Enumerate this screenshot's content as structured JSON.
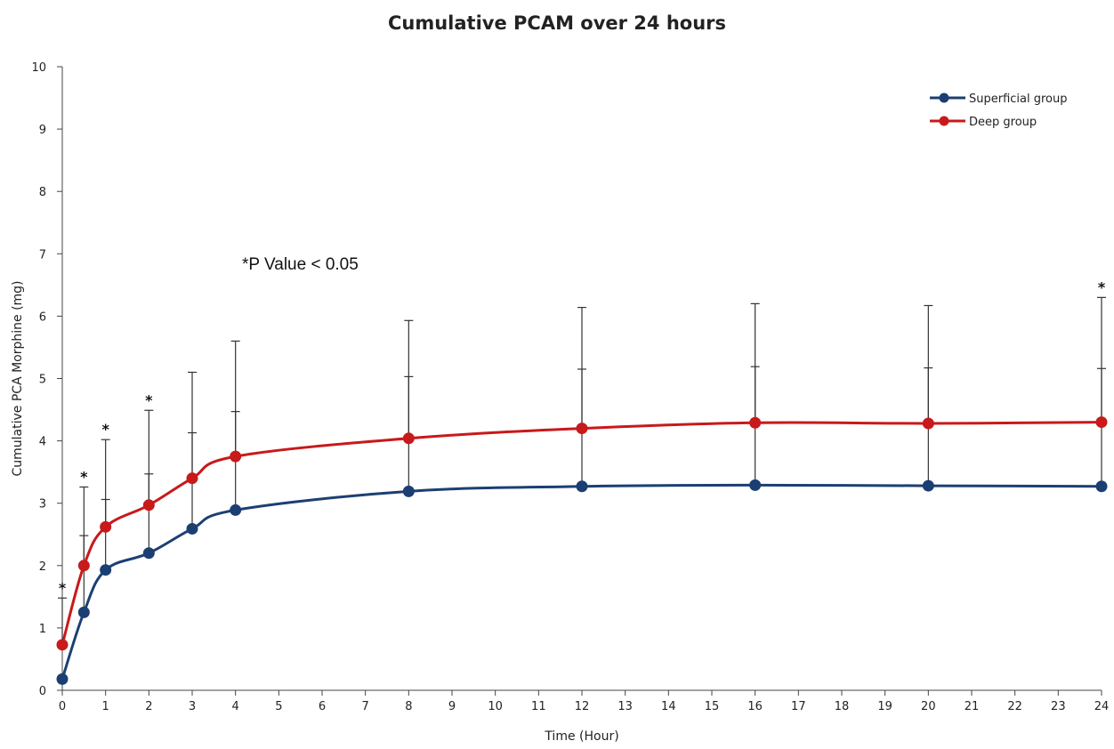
{
  "chart_data": {
    "type": "line",
    "title": "Cumulative PCAM over 24 hours",
    "xlabel": "Time (Hour)",
    "ylabel": "Cumulative PCA Morphine (mg)",
    "xlim": [
      0,
      24
    ],
    "ylim": [
      0,
      10
    ],
    "x_ticks": [
      0,
      1,
      2,
      3,
      4,
      5,
      6,
      7,
      8,
      9,
      10,
      11,
      12,
      13,
      14,
      15,
      16,
      17,
      18,
      19,
      20,
      21,
      22,
      23,
      24
    ],
    "y_ticks": [
      0,
      1,
      2,
      3,
      4,
      5,
      6,
      7,
      8,
      9,
      10
    ],
    "x": [
      0,
      0.5,
      1,
      2,
      3,
      4,
      8,
      12,
      16,
      20,
      24
    ],
    "series": [
      {
        "name": "Superficial group",
        "color": "#1c3f73",
        "values": [
          0.18,
          1.25,
          1.93,
          2.2,
          2.59,
          2.89,
          3.19,
          3.27,
          3.29,
          3.28,
          3.27
        ],
        "error_upper": [
          0.18,
          2.48,
          3.06,
          3.47,
          4.13,
          4.47,
          5.03,
          5.15,
          5.19,
          5.17,
          5.16
        ]
      },
      {
        "name": "Deep group",
        "color": "#c8191b",
        "values": [
          0.73,
          2.0,
          2.62,
          2.97,
          3.4,
          3.75,
          4.04,
          4.2,
          4.29,
          4.28,
          4.3
        ],
        "error_upper": [
          1.48,
          3.26,
          4.02,
          4.49,
          5.1,
          5.6,
          5.93,
          6.14,
          6.2,
          6.17,
          6.3
        ]
      }
    ],
    "significant_x": [
      0,
      0.5,
      1,
      2,
      24
    ],
    "significance_marker": "*",
    "annotation": "*P Value < 0.05",
    "legend_position": "top-right",
    "grid": false
  }
}
